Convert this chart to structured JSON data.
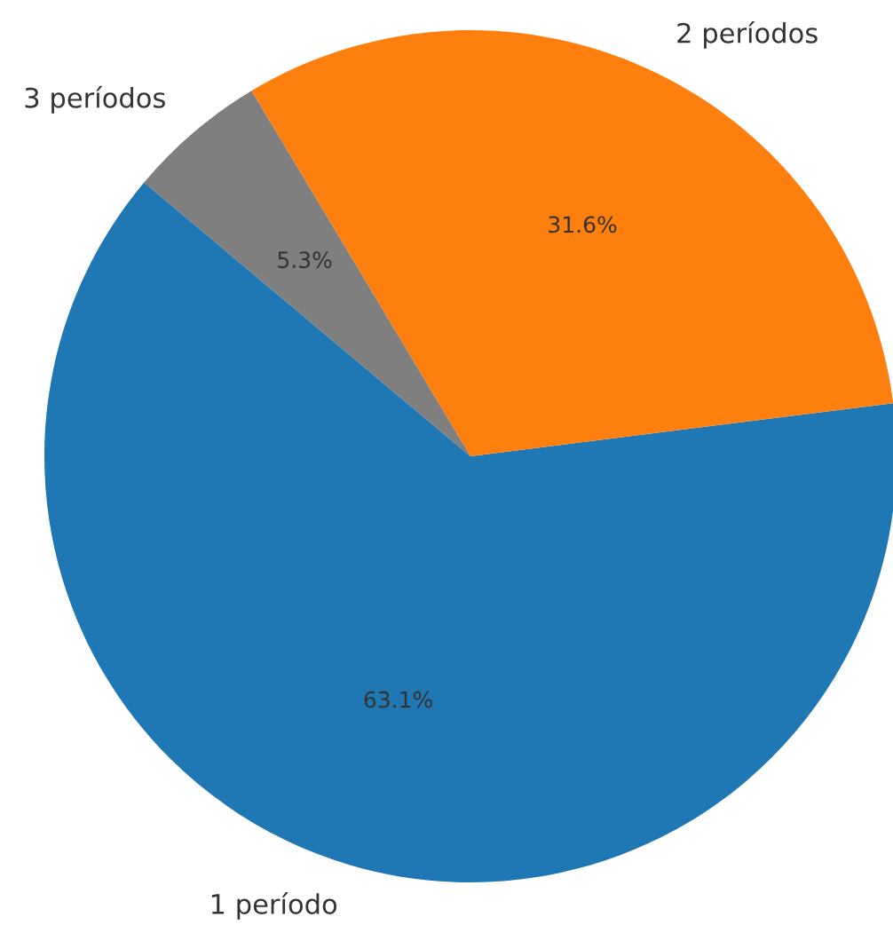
{
  "chart_data": {
    "type": "pie",
    "categories": [
      "1 período",
      "2 períodos",
      "3 períodos"
    ],
    "values": [
      63.1,
      31.6,
      5.3
    ],
    "colors": [
      "#1f77b4",
      "#ff7f0e",
      "#7f7f7f"
    ],
    "value_labels": [
      "63.1%",
      "31.6%",
      "5.3%"
    ],
    "legend": false
  }
}
